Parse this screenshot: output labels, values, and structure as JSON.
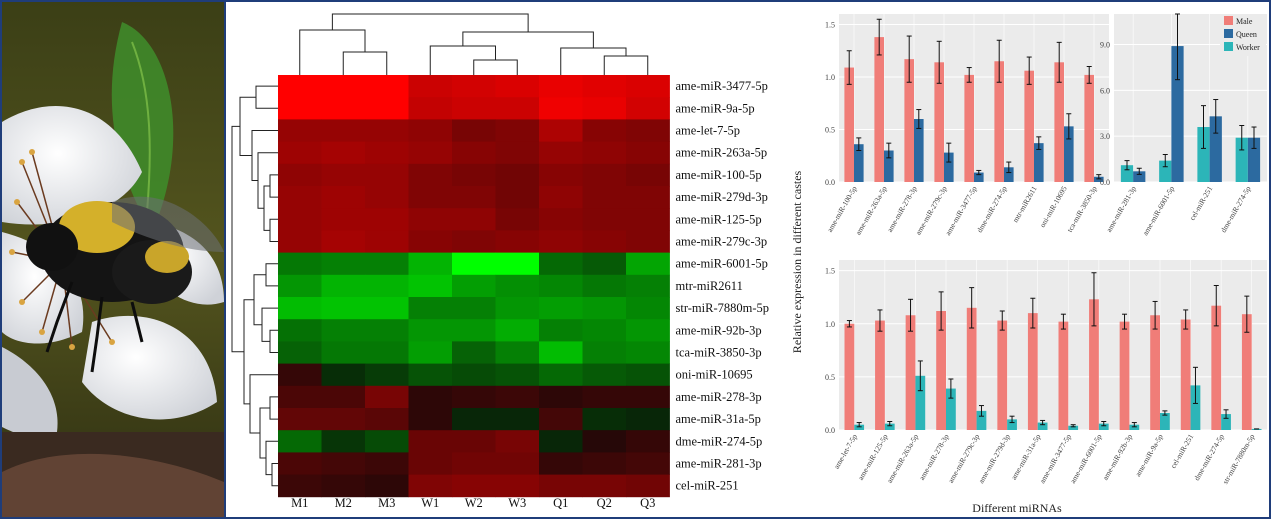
{
  "heatmap": {
    "columns": [
      "M1",
      "M2",
      "M3",
      "W1",
      "W2",
      "W3",
      "Q1",
      "Q2",
      "Q3"
    ],
    "rows": [
      {
        "name": "ame-miR-3477-5p",
        "values": [
          3.0,
          3.0,
          3.0,
          2.3,
          2.4,
          2.5,
          2.7,
          2.6,
          2.5
        ]
      },
      {
        "name": "ame-miR-9a-5p",
        "values": [
          3.0,
          3.0,
          3.0,
          2.2,
          2.3,
          2.3,
          2.8,
          2.7,
          2.4
        ]
      },
      {
        "name": "ame-let-7-5p",
        "values": [
          1.6,
          1.6,
          1.6,
          1.5,
          1.2,
          1.3,
          1.9,
          1.4,
          1.3
        ]
      },
      {
        "name": "ame-miR-263a-5p",
        "values": [
          1.7,
          1.8,
          1.7,
          1.6,
          1.4,
          1.3,
          1.6,
          1.5,
          1.4
        ]
      },
      {
        "name": "ame-miR-100-5p",
        "values": [
          1.5,
          1.6,
          1.6,
          1.3,
          1.2,
          1.1,
          1.4,
          1.3,
          1.2
        ]
      },
      {
        "name": "ame-miR-279d-3p",
        "values": [
          1.6,
          1.7,
          1.6,
          1.3,
          1.3,
          1.1,
          1.5,
          1.3,
          1.3
        ]
      },
      {
        "name": "ame-miR-125-5p",
        "values": [
          1.6,
          1.7,
          1.7,
          1.5,
          1.5,
          1.2,
          1.4,
          1.3,
          1.3
        ]
      },
      {
        "name": "ame-miR-279c-3p",
        "values": [
          1.6,
          1.8,
          1.7,
          1.4,
          1.3,
          1.4,
          1.5,
          1.4,
          1.3
        ]
      },
      {
        "name": "ame-miR-6001-5p",
        "values": [
          -1.2,
          -1.3,
          -1.3,
          -2.0,
          -3.0,
          -3.2,
          -1.0,
          -0.8,
          -1.8
        ]
      },
      {
        "name": "mtr-miR2611",
        "values": [
          -1.6,
          -2.0,
          -2.0,
          -2.2,
          -1.7,
          -1.5,
          -1.4,
          -1.2,
          -1.3
        ]
      },
      {
        "name": "str-miR-7880m-5p",
        "values": [
          -2.1,
          -2.2,
          -2.2,
          -1.3,
          -1.3,
          -1.6,
          -1.7,
          -1.6,
          -1.4
        ]
      },
      {
        "name": "ame-miR-92b-3p",
        "values": [
          -1.1,
          -1.3,
          -1.3,
          -1.6,
          -1.6,
          -1.9,
          -1.3,
          -1.4,
          -1.6
        ]
      },
      {
        "name": "tca-miR-3850-3p",
        "values": [
          -0.9,
          -1.2,
          -1.2,
          -1.7,
          -0.9,
          -1.3,
          -2.1,
          -1.3,
          -1.4
        ]
      },
      {
        "name": "oni-miR-10695",
        "values": [
          0.3,
          -0.2,
          -0.4,
          -0.7,
          -0.6,
          -0.7,
          -1.0,
          -0.8,
          -0.7
        ]
      },
      {
        "name": "ame-miR-278-3p",
        "values": [
          0.6,
          0.6,
          1.2,
          0.2,
          0.3,
          0.4,
          0.2,
          0.3,
          0.3
        ]
      },
      {
        "name": "ame-miR-31a-5p",
        "values": [
          0.9,
          0.9,
          0.8,
          0.2,
          -0.1,
          -0.1,
          0.5,
          -0.2,
          -0.1
        ]
      },
      {
        "name": "dme-miR-274-5p",
        "values": [
          -1.0,
          -0.3,
          -0.6,
          1.0,
          1.0,
          1.2,
          -0.1,
          0.1,
          0.3
        ]
      },
      {
        "name": "ame-miR-281-3p",
        "values": [
          0.6,
          0.5,
          0.4,
          1.0,
          1.1,
          1.1,
          0.3,
          0.4,
          0.5
        ]
      },
      {
        "name": "cel-miR-251",
        "values": [
          0.4,
          0.3,
          0.2,
          1.3,
          1.4,
          1.4,
          1.2,
          1.2,
          1.1
        ]
      }
    ]
  },
  "chart_data": [
    {
      "type": "bar",
      "categories": [
        "ame-miR-100-5p",
        "ame-miR-263a-5p",
        "ame-miR-278-3p",
        "ame-miR-279c-3p",
        "ame-miR-3477-5p",
        "dme-miR-274-5p",
        "mtr-miR2611",
        "oni-miR-10695",
        "tca-miR-3850-3p"
      ],
      "series": [
        {
          "name": "Male",
          "values": [
            1.09,
            1.38,
            1.17,
            1.14,
            1.02,
            1.15,
            1.06,
            1.14,
            1.02
          ],
          "errors": [
            0.16,
            0.17,
            0.22,
            0.2,
            0.07,
            0.2,
            0.13,
            0.19,
            0.08
          ]
        },
        {
          "name": "Queen",
          "values": [
            0.36,
            0.3,
            0.6,
            0.28,
            0.09,
            0.14,
            0.37,
            0.53,
            0.05
          ],
          "errors": [
            0.06,
            0.07,
            0.09,
            0.09,
            0.02,
            0.05,
            0.06,
            0.12,
            0.02
          ]
        }
      ],
      "yticks": [
        0.0,
        0.5,
        1.0,
        1.5
      ],
      "ylim": [
        0,
        1.6
      ]
    },
    {
      "type": "bar",
      "categories": [
        "ame-miR-281-3p",
        "ame-miR-6001-5p",
        "cel-miR-251",
        "dme-miR-274-5p"
      ],
      "series": [
        {
          "name": "Worker",
          "values": [
            1.1,
            1.4,
            3.6,
            2.9
          ],
          "errors": [
            0.3,
            0.4,
            1.4,
            0.8
          ]
        },
        {
          "name": "Queen",
          "values": [
            0.7,
            8.9,
            4.3,
            2.9
          ],
          "errors": [
            0.2,
            2.2,
            1.1,
            0.7
          ]
        }
      ],
      "yticks": [
        0.0,
        3.0,
        6.0,
        9.0
      ],
      "ylim": [
        0,
        11
      ],
      "legend": [
        "Male",
        "Queen",
        "Worker"
      ],
      "legend_position": "top-right"
    },
    {
      "type": "bar",
      "categories": [
        "ame-let-7-5p",
        "ame-miR-125-5p",
        "ame-miR-263a-5p",
        "ame-miR-278-3p",
        "ame-miR-279c-3p",
        "ame-miR-279d-3p",
        "ame-miR-31a-5p",
        "ame-miR-3477-5p",
        "ame-miR-6001-5p",
        "ame-miR-92b-3p",
        "ame-miR-9a-5p",
        "cel-miR-251",
        "dme-miR-274-5p",
        "str-miR-7880m-5p"
      ],
      "series": [
        {
          "name": "Male",
          "values": [
            1.0,
            1.03,
            1.08,
            1.12,
            1.15,
            1.03,
            1.1,
            1.02,
            1.23,
            1.02,
            1.08,
            1.04,
            1.17,
            1.09
          ],
          "errors": [
            0.03,
            0.1,
            0.15,
            0.18,
            0.19,
            0.09,
            0.14,
            0.07,
            0.25,
            0.07,
            0.13,
            0.09,
            0.19,
            0.17
          ]
        },
        {
          "name": "Worker",
          "values": [
            0.05,
            0.06,
            0.51,
            0.39,
            0.18,
            0.1,
            0.07,
            0.04,
            0.06,
            0.05,
            0.16,
            0.42,
            0.15,
            0.01
          ],
          "errors": [
            0.02,
            0.02,
            0.14,
            0.09,
            0.05,
            0.03,
            0.02,
            0.01,
            0.02,
            0.02,
            0.02,
            0.17,
            0.04,
            0.0
          ]
        }
      ],
      "yticks": [
        0.0,
        0.5,
        1.0,
        1.5
      ],
      "ylim": [
        0,
        1.6
      ]
    }
  ],
  "axes": {
    "ylabel": "Relative expression in different castes",
    "xlabel": "Different miRNAs"
  },
  "legend": [
    {
      "name": "Male",
      "color": "#F07D78"
    },
    {
      "name": "Queen",
      "color": "#2C6AA0"
    },
    {
      "name": "Worker",
      "color": "#2CB5B8"
    }
  ],
  "colors": {
    "Male": "#F07D78",
    "Queen": "#2C6AA0",
    "Worker": "#2CB5B8",
    "panel": "#EBEBEB"
  }
}
